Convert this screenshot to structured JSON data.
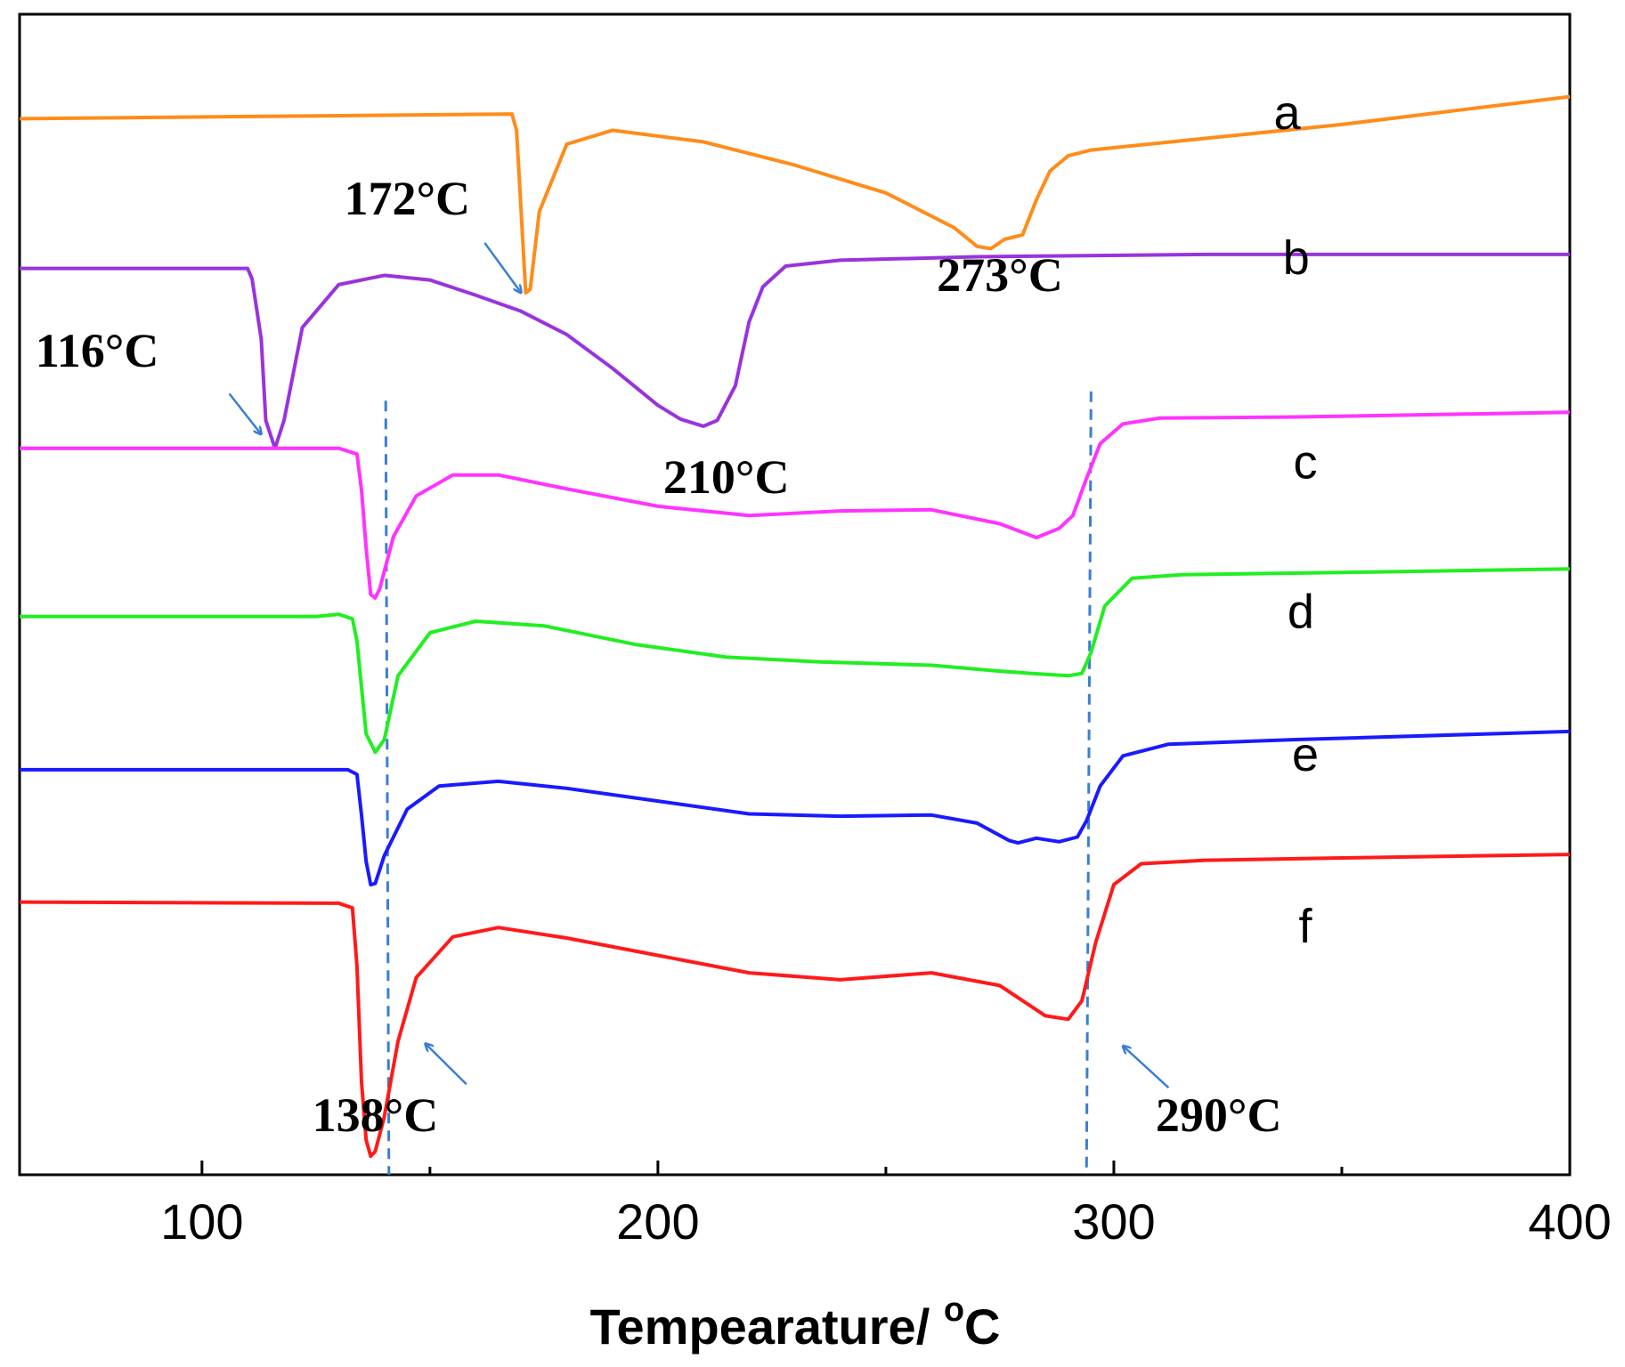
{
  "chart_data": {
    "type": "line",
    "title": "",
    "xlabel": "Tempearature/ °C",
    "xlabel_main": "Tempearature/ ",
    "xlabel_degree": "o",
    "xlabel_unit": "C",
    "ylabel": "",
    "xlim": [
      60,
      400
    ],
    "xticks": [
      100,
      200,
      300,
      400
    ],
    "xtick_labels": [
      "100",
      "200",
      "300",
      "400"
    ],
    "ylim": [
      0,
      100
    ],
    "grid": false,
    "colors": {
      "axis": "#000000",
      "guide": "#3a7fd0",
      "arrow": "#3a7fd0"
    },
    "series": [
      {
        "name": "a",
        "color": "#ff8c1a",
        "points": [
          [
            60,
            91
          ],
          [
            168,
            91.4
          ],
          [
            169,
            90
          ],
          [
            170,
            83
          ],
          [
            171,
            76
          ],
          [
            172,
            76.3
          ],
          [
            174,
            83
          ],
          [
            180,
            88.8
          ],
          [
            190,
            90
          ],
          [
            210,
            89
          ],
          [
            230,
            87
          ],
          [
            250,
            84.6
          ],
          [
            265,
            81.6
          ],
          [
            270,
            80
          ],
          [
            273,
            79.8
          ],
          [
            276,
            80.6
          ],
          [
            280,
            81
          ],
          [
            283,
            84
          ],
          [
            286,
            86.5
          ],
          [
            290,
            87.8
          ],
          [
            295,
            88.3
          ],
          [
            320,
            89.3
          ],
          [
            350,
            90.5
          ],
          [
            375,
            91.7
          ],
          [
            400,
            92.9
          ]
        ]
      },
      {
        "name": "b",
        "color": "#9933dd",
        "points": [
          [
            60,
            78.1
          ],
          [
            110,
            78.1
          ],
          [
            111,
            77.2
          ],
          [
            113,
            72
          ],
          [
            114,
            65
          ],
          [
            116,
            62.6
          ],
          [
            118,
            65
          ],
          [
            122,
            73
          ],
          [
            130,
            76.7
          ],
          [
            140,
            77.5
          ],
          [
            150,
            77.1
          ],
          [
            160,
            75.8
          ],
          [
            170,
            74.4
          ],
          [
            180,
            72.4
          ],
          [
            190,
            69.5
          ],
          [
            200,
            66.3
          ],
          [
            205,
            65.1
          ],
          [
            210,
            64.5
          ],
          [
            213,
            65
          ],
          [
            217,
            68
          ],
          [
            220,
            73.5
          ],
          [
            223,
            76.5
          ],
          [
            228,
            78.3
          ],
          [
            240,
            78.8
          ],
          [
            270,
            79.1
          ],
          [
            320,
            79.3
          ],
          [
            400,
            79.3
          ]
        ]
      },
      {
        "name": "c",
        "color": "#ff33ff",
        "points": [
          [
            60,
            62.6
          ],
          [
            130,
            62.6
          ],
          [
            134,
            62.1
          ],
          [
            135,
            59
          ],
          [
            136,
            54
          ],
          [
            137,
            50
          ],
          [
            138,
            49.7
          ],
          [
            139,
            50.5
          ],
          [
            142,
            55
          ],
          [
            147,
            58.5
          ],
          [
            155,
            60.3
          ],
          [
            165,
            60.3
          ],
          [
            180,
            59.1
          ],
          [
            200,
            57.6
          ],
          [
            220,
            56.8
          ],
          [
            240,
            57.2
          ],
          [
            260,
            57.3
          ],
          [
            275,
            56.1
          ],
          [
            283,
            54.9
          ],
          [
            288,
            55.7
          ],
          [
            291,
            56.8
          ],
          [
            294,
            60
          ],
          [
            297,
            63
          ],
          [
            302,
            64.7
          ],
          [
            310,
            65.2
          ],
          [
            340,
            65.3
          ],
          [
            400,
            65.7
          ]
        ]
      },
      {
        "name": "d",
        "color": "#22ee22",
        "points": [
          [
            60,
            48.1
          ],
          [
            125,
            48.1
          ],
          [
            130,
            48.3
          ],
          [
            133,
            47.9
          ],
          [
            134,
            46
          ],
          [
            135,
            42
          ],
          [
            136,
            38
          ],
          [
            138,
            36.4
          ],
          [
            140,
            37.5
          ],
          [
            143,
            43
          ],
          [
            150,
            46.7
          ],
          [
            160,
            47.7
          ],
          [
            175,
            47.3
          ],
          [
            195,
            45.7
          ],
          [
            215,
            44.6
          ],
          [
            235,
            44.2
          ],
          [
            260,
            43.9
          ],
          [
            275,
            43.4
          ],
          [
            282,
            43.2
          ],
          [
            290,
            43
          ],
          [
            293,
            43.2
          ],
          [
            295,
            45
          ],
          [
            298,
            49
          ],
          [
            304,
            51.4
          ],
          [
            315,
            51.7
          ],
          [
            350,
            51.9
          ],
          [
            400,
            52.2
          ]
        ]
      },
      {
        "name": "e",
        "color": "#1a1aff",
        "points": [
          [
            60,
            34.9
          ],
          [
            132,
            34.9
          ],
          [
            134,
            34.5
          ],
          [
            135,
            31
          ],
          [
            136,
            27
          ],
          [
            137,
            25
          ],
          [
            138,
            25.1
          ],
          [
            140,
            27.5
          ],
          [
            145,
            31.5
          ],
          [
            152,
            33.5
          ],
          [
            165,
            33.9
          ],
          [
            180,
            33.3
          ],
          [
            200,
            32.2
          ],
          [
            220,
            31.1
          ],
          [
            240,
            30.9
          ],
          [
            260,
            31
          ],
          [
            270,
            30.3
          ],
          [
            277,
            28.8
          ],
          [
            279,
            28.6
          ],
          [
            283,
            29
          ],
          [
            288,
            28.7
          ],
          [
            292,
            29.1
          ],
          [
            294,
            30.5
          ],
          [
            297,
            33.5
          ],
          [
            302,
            36.1
          ],
          [
            312,
            37.1
          ],
          [
            340,
            37.5
          ],
          [
            400,
            38.2
          ]
        ]
      },
      {
        "name": "f",
        "color": "#ff1a1a",
        "points": [
          [
            60,
            23.5
          ],
          [
            130,
            23.4
          ],
          [
            133,
            23
          ],
          [
            134,
            18
          ],
          [
            135,
            8
          ],
          [
            136,
            3
          ],
          [
            137,
            1.6
          ],
          [
            138,
            2
          ],
          [
            140,
            5
          ],
          [
            143,
            11.5
          ],
          [
            147,
            17
          ],
          [
            155,
            20.5
          ],
          [
            165,
            21.3
          ],
          [
            180,
            20.4
          ],
          [
            200,
            18.9
          ],
          [
            220,
            17.4
          ],
          [
            240,
            16.8
          ],
          [
            260,
            17.4
          ],
          [
            275,
            16.3
          ],
          [
            285,
            13.7
          ],
          [
            290,
            13.4
          ],
          [
            293,
            15
          ],
          [
            296,
            20
          ],
          [
            300,
            25
          ],
          [
            306,
            26.8
          ],
          [
            320,
            27.1
          ],
          [
            350,
            27.3
          ],
          [
            400,
            27.6
          ]
        ]
      }
    ],
    "series_letters": [
      {
        "text": "a",
        "x": 338,
        "y": 91.2
      },
      {
        "text": "b",
        "x": 340,
        "y": 78.7
      },
      {
        "text": "c",
        "x": 342,
        "y": 61.1
      },
      {
        "text": "d",
        "x": 341,
        "y": 48.2
      },
      {
        "text": "e",
        "x": 342,
        "y": 35.9
      },
      {
        "text": "f",
        "x": 342,
        "y": 21.1
      }
    ],
    "annotations": [
      {
        "text": "172°C",
        "x": 145,
        "y": 83.7,
        "arrow_from": [
          162,
          80.3
        ],
        "arrow_to": [
          170,
          76
        ]
      },
      {
        "text": "116°C",
        "x": 77,
        "y": 70.6,
        "arrow_from": [
          106,
          67.3
        ],
        "arrow_to": [
          113,
          63.8
        ]
      },
      {
        "text": "273°C",
        "x": 275,
        "y": 77.1
      },
      {
        "text": "210°C",
        "x": 215,
        "y": 59.7
      },
      {
        "text": "138°C",
        "x": 138,
        "y": 4.7,
        "arrow_from": [
          158,
          7.8
        ],
        "arrow_to": [
          149,
          11.3
        ]
      },
      {
        "text": "290°C",
        "x": 323,
        "y": 4.7,
        "arrow_from": [
          312,
          7.5
        ],
        "arrow_to": [
          302,
          11.1
        ]
      }
    ],
    "guide_lines": [
      {
        "x_top": 140.3,
        "x_bottom": 141,
        "y_top": 66.7,
        "y_bottom": 0
      },
      {
        "x_top": 295,
        "x_bottom": 294,
        "y_top": 67.5,
        "y_bottom": 0
      }
    ]
  }
}
